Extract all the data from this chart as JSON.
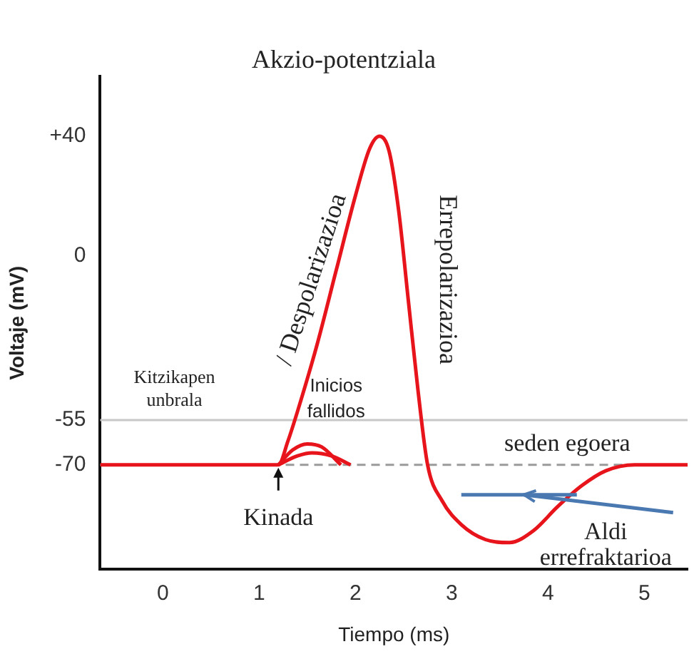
{
  "chart_data": {
    "type": "line",
    "title": "Akzio-potentziala",
    "xlabel": "Tiempo (ms)",
    "ylabel": "Voltaje (mV)",
    "xlim": [
      -0.65,
      5.45
    ],
    "xticks": [
      0,
      1,
      2,
      3,
      4,
      5
    ],
    "ylim": [
      -105,
      60
    ],
    "yticks": [
      {
        "value": 40,
        "label": "+40"
      },
      0,
      -55,
      -70
    ],
    "grid": false,
    "legend": false,
    "marker": "none",
    "line_style": "solid",
    "series": [
      {
        "color": "#e8141b",
        "x": [
          -0.65,
          1.2,
          1.3,
          1.4,
          1.6,
          1.8,
          2.0,
          2.15,
          2.25,
          2.35,
          2.45,
          2.55,
          2.65,
          2.75,
          2.9,
          3.1,
          3.35,
          3.6,
          3.85,
          4.1,
          4.35,
          4.6,
          4.9,
          5.45
        ],
        "values": [
          -70,
          -70,
          -62,
          -52,
          -30,
          -5,
          20,
          36,
          40,
          35,
          15,
          -15,
          -45,
          -70,
          -82,
          -90,
          -95,
          -96,
          -92,
          -84,
          -77,
          -72,
          -70,
          -70
        ]
      },
      {
        "color": "#e8141b",
        "x": [
          1.2,
          1.35,
          1.5,
          1.65,
          1.85
        ],
        "values": [
          -70,
          -65,
          -63,
          -64,
          -70
        ]
      },
      {
        "color": "#e8141b",
        "x": [
          1.2,
          1.4,
          1.55,
          1.75,
          1.95
        ],
        "values": [
          -70,
          -67,
          -66,
          -67,
          -70
        ]
      }
    ],
    "ref_lines": [
      {
        "axis": "y",
        "value": -55,
        "label": "Kitzikapen unbrala",
        "color": "#c8c8c8",
        "line_style": "solid"
      },
      {
        "axis": "y",
        "value": -70,
        "label": "seden egoera",
        "color": "#9a9a9a",
        "line_style": "dashed"
      }
    ],
    "annotations": [
      "/ Despolarizazioa",
      "Errepolarizazioa",
      "Inicios fallidos",
      "Kinada",
      "Aldi errefraktarioa"
    ]
  }
}
